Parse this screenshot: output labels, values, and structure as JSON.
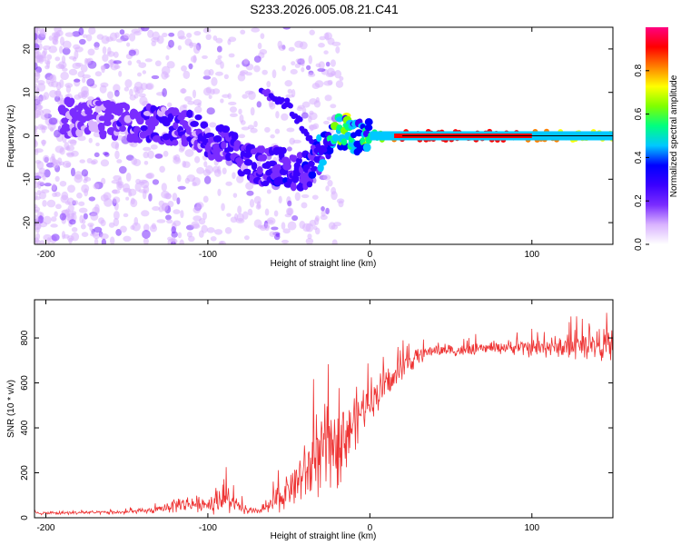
{
  "title": "S233.2026.005.08.21.C41",
  "colors": {
    "snr_line": "#ee3333",
    "axis": "#000000",
    "spectrogram_background": "#ffffff"
  },
  "chart_data": [
    {
      "type": "heatmap",
      "name": "spectrogram",
      "xlabel": "Height of straight line (km)",
      "ylabel": "Frequency (Hz)",
      "xlim": [
        -207,
        150
      ],
      "ylim": [
        -25,
        25
      ],
      "xticks": [
        -200,
        -100,
        0,
        100
      ],
      "yticks": [
        -20,
        -10,
        0,
        10,
        20
      ],
      "colorbar": {
        "label": "Normalized spectral amplitude",
        "range": [
          0,
          1
        ],
        "ticks": [
          0.0,
          0.2,
          0.4,
          0.6,
          0.8
        ],
        "colormap": [
          "#ffffff",
          "#d9b3ff",
          "#7a2cff",
          "#3a00ff",
          "#0000ff",
          "#00c8ff",
          "#00ff80",
          "#7fff00",
          "#ffff00",
          "#ff8000",
          "#ff0000",
          "#ff0080"
        ]
      },
      "ridge": {
        "description": "dominant frequency track",
        "x": [
          -170,
          -150,
          -130,
          -110,
          -90,
          -75,
          -65,
          -55,
          -45,
          -38,
          -33,
          -28,
          -22,
          -17,
          -12,
          -8,
          -4,
          0,
          5,
          10,
          20,
          40,
          60,
          80,
          100,
          120,
          150
        ],
        "y": [
          4,
          3,
          3,
          1,
          -2,
          -6,
          -7,
          -7,
          -8,
          -8,
          -5,
          -3,
          1,
          1.5,
          1,
          -1,
          0,
          0.5,
          0,
          0,
          0,
          0,
          0,
          0,
          0,
          0,
          0
        ],
        "amplitude": [
          0.15,
          0.18,
          0.2,
          0.2,
          0.2,
          0.22,
          0.22,
          0.25,
          0.25,
          0.25,
          0.3,
          0.35,
          0.45,
          0.5,
          0.5,
          0.45,
          0.45,
          0.5,
          0.55,
          0.7,
          0.9,
          0.95,
          0.95,
          0.9,
          0.85,
          0.75,
          0.7
        ]
      },
      "secondary_branch": {
        "x": [
          -67,
          -60,
          -50,
          -45,
          -38,
          -33,
          -28
        ],
        "y": [
          11,
          9,
          7,
          4,
          0,
          -3,
          -4
        ]
      }
    },
    {
      "type": "line",
      "name": "snr",
      "xlabel": "Height of straight line (km)",
      "ylabel": "SNR (10 * v/v)",
      "xlim": [
        -207,
        150
      ],
      "ylim": [
        0,
        970
      ],
      "xticks": [
        -200,
        -100,
        0,
        100
      ],
      "yticks": [
        0,
        200,
        400,
        600,
        800
      ],
      "envelope": {
        "x": [
          -207,
          -150,
          -130,
          -120,
          -100,
          -90,
          -80,
          -70,
          -60,
          -50,
          -40,
          -30,
          -20,
          -10,
          0,
          10,
          20,
          30,
          40,
          60,
          80,
          100,
          120,
          140,
          150
        ],
        "mean": [
          20,
          25,
          35,
          60,
          60,
          90,
          40,
          25,
          60,
          130,
          210,
          290,
          350,
          430,
          530,
          580,
          670,
          720,
          750,
          740,
          760,
          755,
          760,
          770,
          770
        ],
        "spread": [
          10,
          12,
          20,
          50,
          50,
          110,
          30,
          20,
          60,
          120,
          180,
          260,
          280,
          180,
          130,
          110,
          70,
          50,
          40,
          35,
          40,
          55,
          70,
          90,
          90
        ]
      }
    }
  ]
}
